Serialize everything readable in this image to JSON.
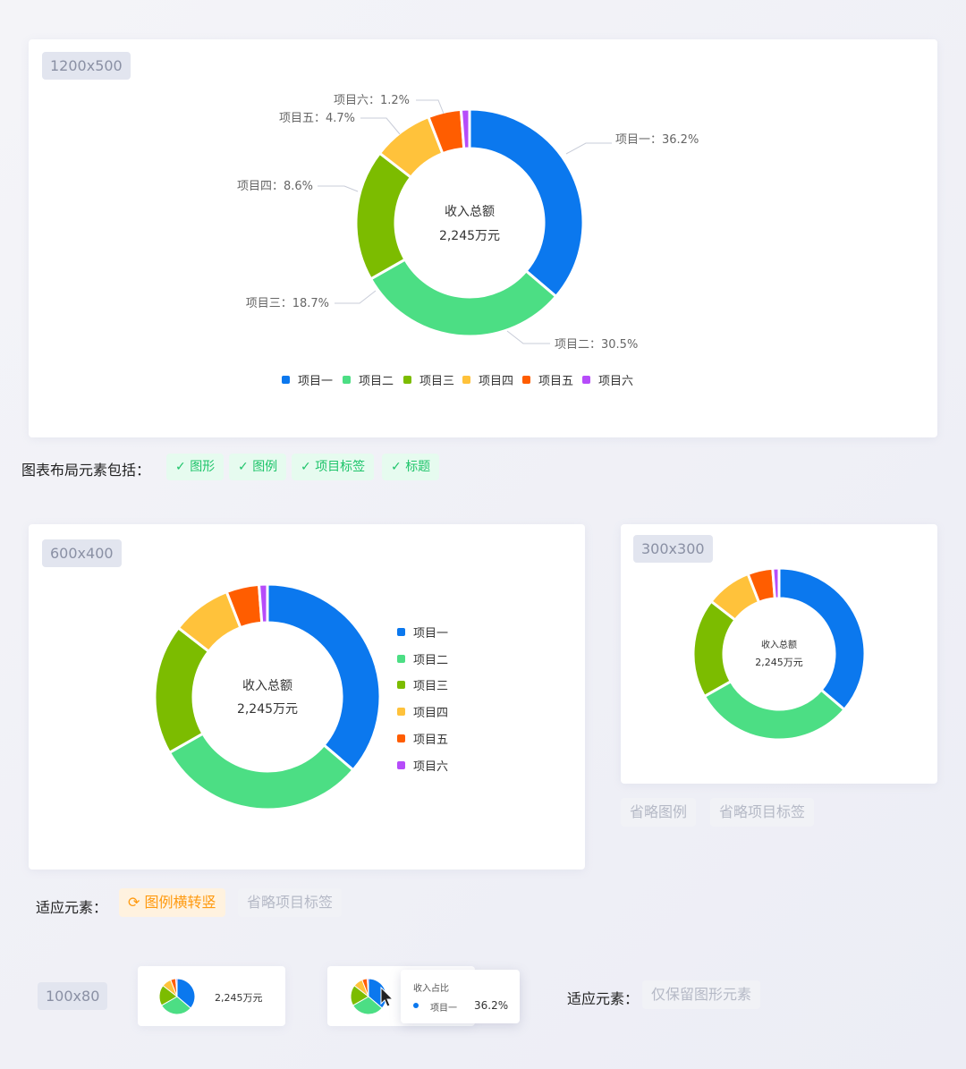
{
  "colors": [
    "#0b78ee",
    "#4cde84",
    "#7cbc00",
    "#ffc23b",
    "#ff5d00",
    "#b64cfa"
  ],
  "chart_data": {
    "type": "pie",
    "donut": true,
    "categories": [
      "项目一",
      "项目二",
      "项目三",
      "项目四",
      "项目五",
      "项目六"
    ],
    "values": [
      36.2,
      30.5,
      18.7,
      8.6,
      4.7,
      1.2
    ],
    "unit": "%",
    "center_title": "收入总额",
    "center_value": "2,245万元",
    "data_labels": [
      "项目一：36.2%",
      "项目二：30.5%",
      "项目三：18.7%",
      "项目四：8.6%",
      "项目五：4.7%",
      "项目六：1.2%"
    ]
  },
  "cards": {
    "large": "1200x500",
    "medium": "600x400",
    "small": "300x300",
    "tiny": "100x80"
  },
  "layout_elements": {
    "label": "图表布局元素包括：",
    "tags": [
      "图形",
      "图例",
      "项目标签",
      "标题"
    ]
  },
  "small_tags": [
    "省略图例",
    "省略项目标签"
  ],
  "medium_adapt": {
    "label": "适应元素：",
    "tags": [
      "图例横转竖",
      "省略项目标签"
    ]
  },
  "tiny_adapt": {
    "label": "适应元素：",
    "tag": "仅保留图形元素"
  },
  "tiny_value": "2,245万元",
  "tooltip": {
    "title": "收入占比",
    "item": "项目一",
    "value": "36.2%"
  }
}
